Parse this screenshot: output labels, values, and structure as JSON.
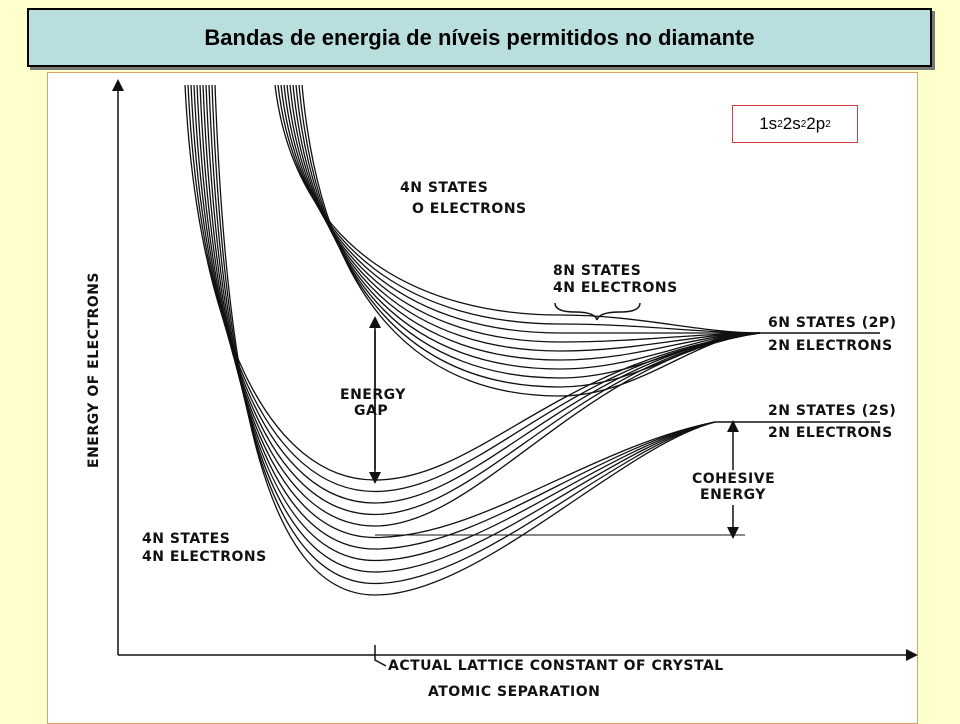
{
  "header": {
    "title": "Bandas de energia de níveis permitidos no diamante"
  },
  "formula": [
    {
      "base": "1s",
      "sup": "2"
    },
    {
      "base": "2s",
      "sup": "2"
    },
    {
      "base": "2p",
      "sup": "2"
    }
  ],
  "diagram": {
    "y_axis_label": "ENERGY OF ELECTRONS",
    "x_axis_label": "ATOMIC SEPARATION",
    "lattice_label": "ACTUAL LATTICE CONSTANT OF CRYSTAL",
    "upper_band": [
      "4N STATES",
      "O ELECTRONS"
    ],
    "mixed_band": [
      "8N STATES",
      "4N ELECTRONS"
    ],
    "p_level": [
      "6N STATES (2P)",
      "2N ELECTRONS"
    ],
    "s_level": [
      "2N STATES (2S)",
      "2N ELECTRONS"
    ],
    "gap": [
      "ENERGY",
      "GAP"
    ],
    "cohesive": [
      "COHESIVE",
      "ENERGY"
    ],
    "lower_band": [
      "4N STATES",
      "4N ELECTRONS"
    ]
  }
}
